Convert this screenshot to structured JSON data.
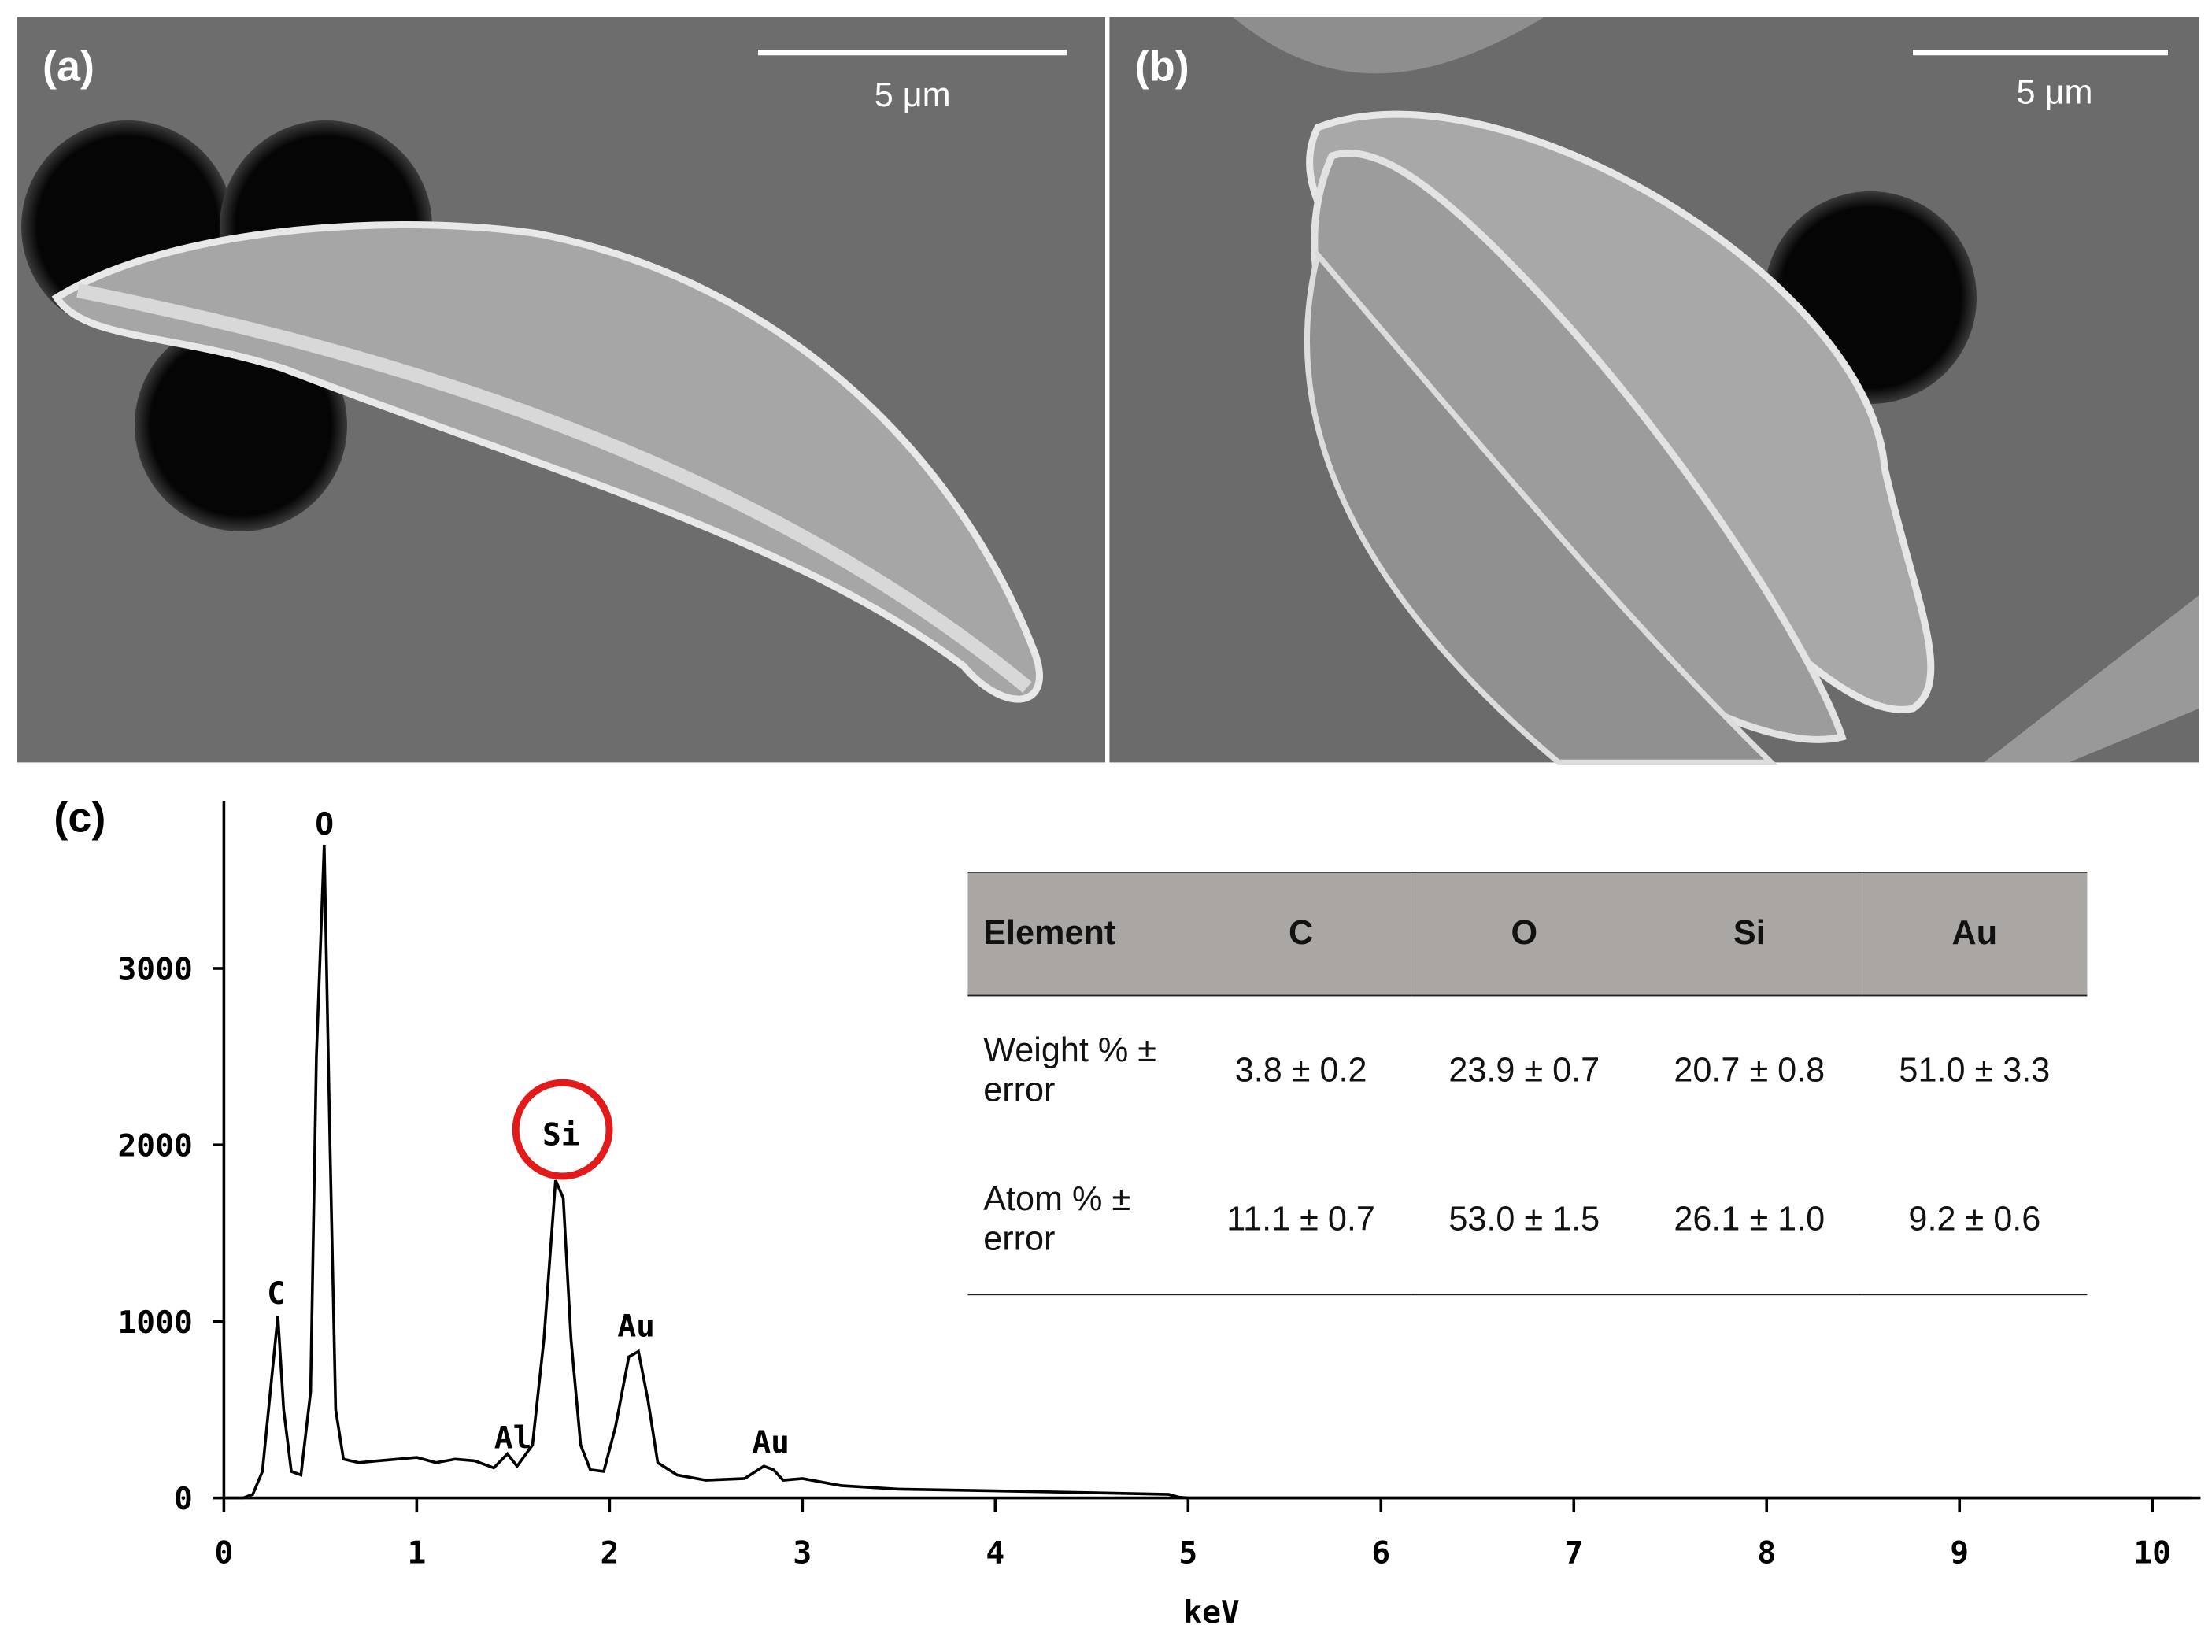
{
  "panels": {
    "a": {
      "label": "(a)",
      "scale_bar": "5 μm"
    },
    "b": {
      "label": "(b)",
      "scale_bar": "5 μm"
    },
    "c": {
      "label": "(c)"
    }
  },
  "chart_data": {
    "type": "line",
    "x_label": "keV",
    "color": "#000000",
    "x": [
      0,
      0.1,
      0.15,
      0.2,
      0.25,
      0.28,
      0.31,
      0.35,
      0.4,
      0.45,
      0.48,
      0.52,
      0.55,
      0.58,
      0.62,
      0.7,
      0.8,
      1.0,
      1.1,
      1.2,
      1.3,
      1.4,
      1.47,
      1.52,
      1.6,
      1.66,
      1.72,
      1.76,
      1.8,
      1.85,
      1.9,
      1.97,
      2.03,
      2.1,
      2.15,
      2.2,
      2.25,
      2.35,
      2.5,
      2.7,
      2.8,
      2.85,
      2.9,
      3.0,
      3.2,
      3.5,
      4.0,
      4.5,
      4.9,
      4.95,
      5.0,
      10.2
    ],
    "values": [
      0,
      0,
      20,
      150,
      700,
      1030,
      500,
      150,
      130,
      600,
      2500,
      3700,
      2000,
      500,
      220,
      200,
      210,
      230,
      200,
      220,
      210,
      170,
      250,
      180,
      300,
      900,
      1800,
      1700,
      900,
      300,
      160,
      150,
      400,
      800,
      830,
      550,
      200,
      130,
      100,
      110,
      180,
      160,
      100,
      110,
      70,
      50,
      40,
      30,
      20,
      5,
      0,
      0
    ],
    "xlim": [
      0,
      10.25
    ],
    "xticks": [
      0,
      1,
      2,
      3,
      4,
      5,
      6,
      7,
      8,
      9,
      10
    ],
    "ylim": [
      0,
      3950
    ],
    "yticks": [
      0,
      1000,
      2000,
      3000
    ],
    "annotations": [
      "C",
      "O",
      "Si",
      "Al",
      "Au",
      "Au"
    ]
  },
  "table": {
    "header": [
      "Element",
      "C",
      "O",
      "Si",
      "Au"
    ],
    "rows": [
      [
        "Weight % ± error",
        "3.8 ± 0.2",
        "23.9 ± 0.7",
        "20.7 ± 0.8",
        "51.0 ± 3.3"
      ],
      [
        "Atom % ± error",
        "11.1 ± 0.7",
        "53.0 ± 1.5",
        "26.1 ± 1.0",
        "9.2 ± 0.6"
      ]
    ]
  }
}
